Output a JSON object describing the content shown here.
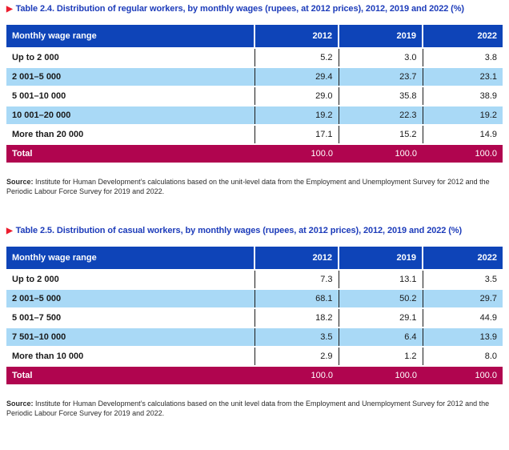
{
  "icons": {
    "triangle_bullet": "▶"
  },
  "colors": {
    "header_blue": "#0e44b8",
    "row_light_blue": "#a9d9f6",
    "total_crimson": "#b0054f",
    "title_blue": "#1d3cba",
    "bullet_red": "#ec1c2d",
    "grid_line": "#1a1a1a"
  },
  "tables": [
    {
      "title": "Table 2.4. Distribution of regular workers, by monthly wages (rupees, at 2012 prices), 2012, 2019 and 2022 (%)",
      "columns": [
        "Monthly wage range",
        "2012",
        "2019",
        "2022"
      ],
      "rows": [
        {
          "label": "Up to 2 000",
          "values": [
            "5.2",
            "3.0",
            "3.8"
          ]
        },
        {
          "label": "2 001–5 000",
          "values": [
            "29.4",
            "23.7",
            "23.1"
          ]
        },
        {
          "label": "5 001–10 000",
          "values": [
            "29.0",
            "35.8",
            "38.9"
          ]
        },
        {
          "label": "10 001–20 000",
          "values": [
            "19.2",
            "22.3",
            "19.2"
          ]
        },
        {
          "label": "More than 20 000",
          "values": [
            "17.1",
            "15.2",
            "14.9"
          ]
        }
      ],
      "total": {
        "label": "Total",
        "values": [
          "100.0",
          "100.0",
          "100.0"
        ]
      },
      "source_label": "Source:",
      "source_text": " Institute for Human Development’s calculations based on the unit-level data from the Employment and Unemployment Survey for 2012 and the Periodic Labour Force Survey for 2019 and 2022."
    },
    {
      "title": "Table 2.5. Distribution of casual workers, by monthly wages (rupees, at 2012 prices), 2012, 2019 and 2022 (%)",
      "columns": [
        "Monthly wage range",
        "2012",
        "2019",
        "2022"
      ],
      "rows": [
        {
          "label": "Up to 2 000",
          "values": [
            "7.3",
            "13.1",
            "3.5"
          ]
        },
        {
          "label": "2 001–5 000",
          "values": [
            "68.1",
            "50.2",
            "29.7"
          ]
        },
        {
          "label": "5 001–7 500",
          "values": [
            "18.2",
            "29.1",
            "44.9"
          ]
        },
        {
          "label": "7 501–10 000",
          "values": [
            "3.5",
            "6.4",
            "13.9"
          ]
        },
        {
          "label": "More than 10 000",
          "values": [
            "2.9",
            "1.2",
            "8.0"
          ]
        }
      ],
      "total": {
        "label": "Total",
        "values": [
          "100.0",
          "100.0",
          "100.0"
        ]
      },
      "source_label": "Source:",
      "source_text": " Institute for Human Development’s calculations based on the unit level data from the Employment and Unemployment Survey for 2012 and the Periodic Labour Force Survey for 2019 and 2022."
    }
  ]
}
